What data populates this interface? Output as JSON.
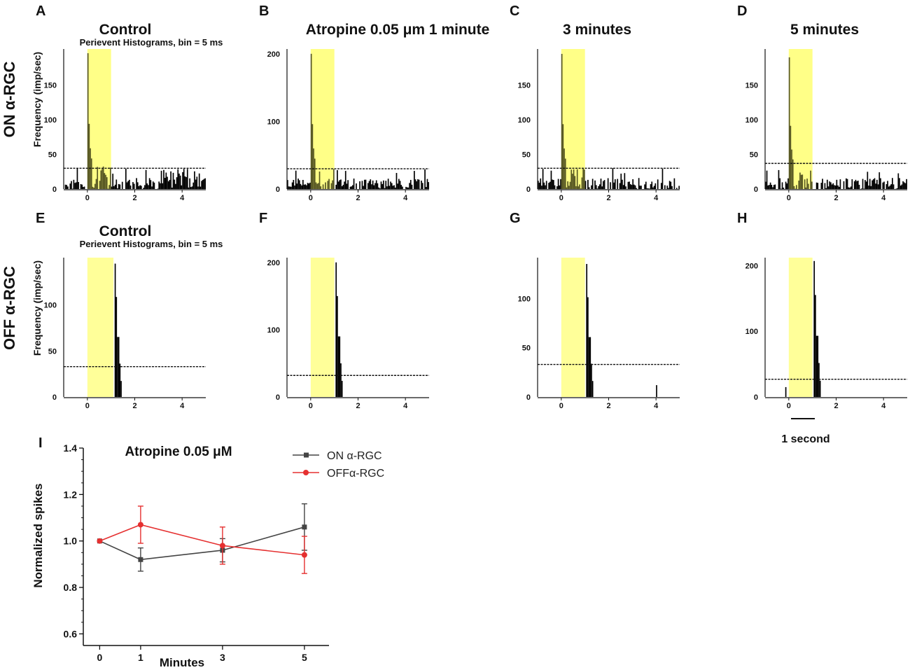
{
  "row_labels": [
    "ON α-RGC",
    "OFF α-RGC"
  ],
  "ylabel": "Frequency (imp/sec)",
  "subtitle": "Perievent Histograms, bin = 5 ms",
  "scale_bar_label": "1 second",
  "colors": {
    "stimulus": "#ffff99",
    "bars": "#000000",
    "on_series": "#444444",
    "off_series": "#e53030"
  },
  "chart_data": [
    {
      "type": "bar",
      "id": "A",
      "letter": "A",
      "title": "Control",
      "subtitle": true,
      "ylabel": true,
      "row": 0,
      "col": 0,
      "xlim": [
        -1,
        5
      ],
      "ylim": [
        0,
        200
      ],
      "yticks": [
        0,
        50,
        100,
        150
      ],
      "xticks": [
        0,
        2,
        4
      ],
      "stimulus": [
        0,
        1
      ],
      "threshold": 30,
      "peak": {
        "x": 0,
        "y": 196
      },
      "baseline": "noisy",
      "late_activity": true
    },
    {
      "type": "bar",
      "id": "B",
      "letter": "B",
      "title": "Atropine 0.05 μm 1 minute",
      "row": 0,
      "col": 1,
      "xlim": [
        -1,
        5
      ],
      "ylim": [
        0,
        205
      ],
      "yticks": [
        0,
        100,
        200
      ],
      "xticks": [
        0,
        2,
        4
      ],
      "stimulus": [
        0,
        1
      ],
      "threshold": 30,
      "peak": {
        "x": 0,
        "y": 200
      },
      "baseline": "noisy"
    },
    {
      "type": "bar",
      "id": "C",
      "letter": "C",
      "title": "3 minutes",
      "row": 0,
      "col": 2,
      "xlim": [
        -1,
        5
      ],
      "ylim": [
        0,
        200
      ],
      "yticks": [
        0,
        50,
        100,
        150
      ],
      "xticks": [
        0,
        2,
        4
      ],
      "stimulus": [
        0,
        1
      ],
      "threshold": 30,
      "peak": {
        "x": 0,
        "y": 195
      },
      "baseline": "noisy"
    },
    {
      "type": "bar",
      "id": "D",
      "letter": "D",
      "title": "5 minutes",
      "row": 0,
      "col": 3,
      "xlim": [
        -1,
        5
      ],
      "ylim": [
        0,
        200
      ],
      "yticks": [
        0,
        50,
        100,
        150
      ],
      "xticks": [
        0,
        2,
        4
      ],
      "stimulus": [
        0,
        1
      ],
      "threshold": 37,
      "peak": {
        "x": 0,
        "y": 190
      },
      "baseline": "noisy"
    },
    {
      "type": "bar",
      "id": "E",
      "letter": "E",
      "title": "Control",
      "subtitle": true,
      "ylabel": true,
      "row": 1,
      "col": 0,
      "xlim": [
        -1,
        5
      ],
      "ylim": [
        0,
        150
      ],
      "yticks": [
        0,
        50,
        100
      ],
      "xticks": [
        0,
        2,
        4
      ],
      "stimulus": [
        0,
        1.1
      ],
      "threshold": 33,
      "peak": {
        "x": 1.15,
        "y": 145
      }
    },
    {
      "type": "bar",
      "id": "F",
      "letter": "F",
      "title": "",
      "row": 1,
      "col": 1,
      "xlim": [
        -1,
        5
      ],
      "ylim": [
        0,
        205
      ],
      "yticks": [
        0,
        100,
        200
      ],
      "xticks": [
        0,
        2,
        4
      ],
      "stimulus": [
        0,
        1
      ],
      "threshold": 32,
      "peak": {
        "x": 1.05,
        "y": 200
      }
    },
    {
      "type": "bar",
      "id": "G",
      "letter": "G",
      "title": "",
      "row": 1,
      "col": 2,
      "xlim": [
        -1,
        5
      ],
      "ylim": [
        0,
        140
      ],
      "yticks": [
        0,
        50,
        100
      ],
      "xticks": [
        0,
        2,
        4
      ],
      "stimulus": [
        0,
        1
      ],
      "threshold": 33,
      "peak": {
        "x": 1.05,
        "y": 135
      },
      "extra_spike": {
        "x": 4.0,
        "y": 12
      }
    },
    {
      "type": "bar",
      "id": "H",
      "letter": "H",
      "title": "",
      "row": 1,
      "col": 3,
      "xlim": [
        -1,
        5
      ],
      "ylim": [
        0,
        210
      ],
      "yticks": [
        0,
        100,
        200
      ],
      "xticks": [
        0,
        2,
        4
      ],
      "stimulus": [
        0,
        1
      ],
      "threshold": 27,
      "peak": {
        "x": 1.05,
        "y": 207
      },
      "extra_spike": {
        "x": -0.15,
        "y": 15
      }
    },
    {
      "type": "line",
      "id": "I",
      "letter": "I",
      "title": "Atropine 0.05 μM",
      "xlabel": "Minutes",
      "ylabel": "Normalized spikes",
      "xlim": [
        -0.4,
        5.6
      ],
      "ylim": [
        0.55,
        1.4
      ],
      "xticks": [
        0,
        1,
        3,
        5
      ],
      "yticks": [
        0.6,
        0.8,
        1.0,
        1.2,
        1.4
      ],
      "yticklabels": [
        "0.6",
        "0.8",
        "1.0",
        "1.2",
        "1.4"
      ],
      "series": [
        {
          "name": "ON α-RGC",
          "color": "#444444",
          "marker": "square",
          "x": [
            0,
            1,
            3,
            5
          ],
          "values": [
            1.0,
            0.92,
            0.96,
            1.06
          ],
          "err": [
            0,
            0.05,
            0.05,
            0.1
          ]
        },
        {
          "name": "OFFα-RGC",
          "color": "#e53030",
          "marker": "circle",
          "x": [
            0,
            1,
            3,
            5
          ],
          "values": [
            1.0,
            1.07,
            0.98,
            0.94
          ],
          "err": [
            0,
            0.08,
            0.08,
            0.08
          ]
        }
      ]
    }
  ]
}
